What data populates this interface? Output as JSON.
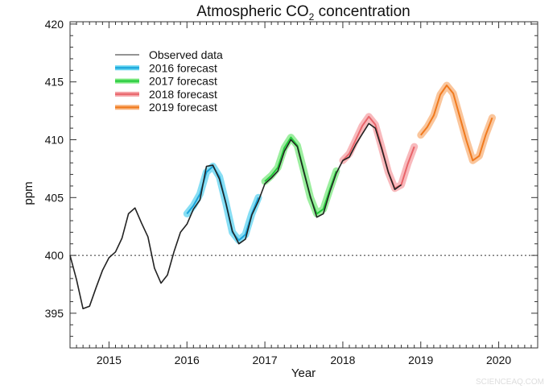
{
  "chart_data": {
    "type": "line",
    "title_main": "Atmospheric CO",
    "title_sub": "2",
    "title_rest": " concentration",
    "xlabel": "Year",
    "ylabel": "ppm",
    "xlim": [
      2014.5,
      2020.5
    ],
    "ylim": [
      392,
      420.2
    ],
    "xticks": [
      2015,
      2016,
      2017,
      2018,
      2019,
      2020
    ],
    "xtick_labels": [
      "2015",
      "2016",
      "2017",
      "2018",
      "2019",
      "2020"
    ],
    "yticks": [
      395,
      400,
      405,
      410,
      415,
      420
    ],
    "ytick_labels": [
      "395",
      "400",
      "405",
      "410",
      "415",
      "420"
    ],
    "reference_line": 400,
    "legend_position": "top-left",
    "series": [
      {
        "name": "Observed data",
        "color": "#222222",
        "start": 2014.5,
        "values": [
          400.0,
          397.9,
          395.4,
          395.6,
          397.2,
          398.7,
          399.8,
          400.3,
          401.5,
          403.6,
          404.1,
          402.8,
          401.6,
          398.9,
          397.6,
          398.3,
          400.3,
          402.0,
          402.7,
          404.0,
          404.8,
          407.7,
          407.8,
          406.6,
          404.5,
          402.1,
          401.0,
          401.4,
          403.5,
          404.7,
          406.2,
          406.7,
          407.3,
          409.0,
          410.0,
          409.4,
          407.2,
          405.1,
          403.3,
          403.6,
          405.5,
          407.1,
          408.2,
          408.5,
          409.6,
          410.5,
          411.4,
          411.0,
          409.2,
          407.2,
          405.7,
          406.1
        ]
      },
      {
        "name": "2016 forecast",
        "color": "#1aa3d9",
        "band": "#5fd3f0",
        "start": 2016.0,
        "values": [
          403.6,
          404.3,
          405.3,
          407.2,
          407.7,
          406.8,
          404.5,
          402.0,
          401.3,
          401.8,
          403.6,
          405.0
        ]
      },
      {
        "name": "2017 forecast",
        "color": "#22c93a",
        "band": "#7be87f",
        "start": 2017.0,
        "values": [
          406.4,
          406.9,
          407.6,
          409.3,
          410.2,
          409.5,
          407.3,
          405.0,
          403.6,
          404.0,
          405.7,
          407.3
        ]
      },
      {
        "name": "2018 forecast",
        "color": "#e8646a",
        "band": "#f5a2a6",
        "start": 2018.0,
        "values": [
          408.2,
          408.8,
          410.0,
          411.2,
          412.0,
          411.3,
          409.3,
          407.2,
          405.8,
          406.1,
          407.9,
          409.4
        ]
      },
      {
        "name": "2019 forecast",
        "color": "#f07a1e",
        "band": "#f8b27a",
        "start": 2019.0,
        "values": [
          410.4,
          411.1,
          412.1,
          413.9,
          414.7,
          414.0,
          412.0,
          410.0,
          408.2,
          408.6,
          410.4,
          411.9
        ]
      }
    ],
    "watermark": "SCIENCEAQ.COM"
  }
}
